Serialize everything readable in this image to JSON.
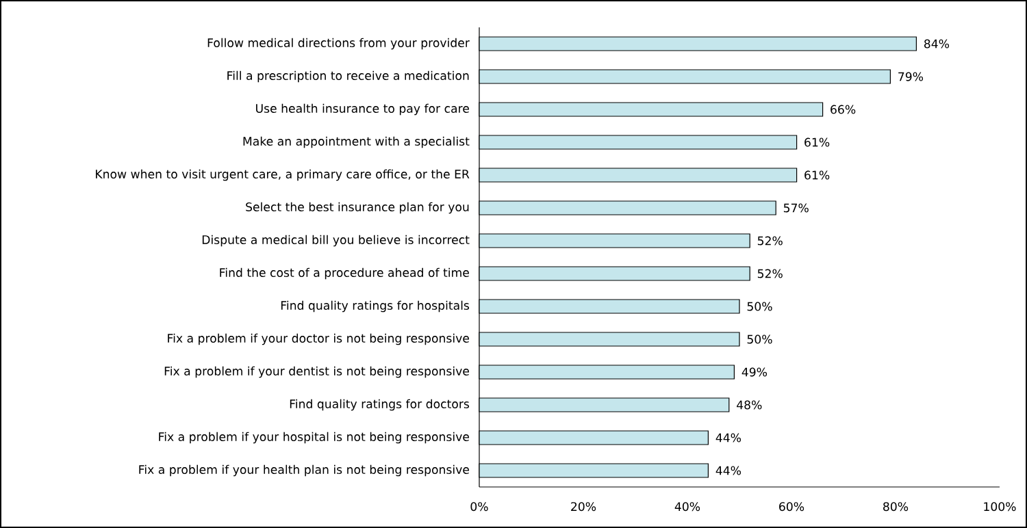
{
  "chart_data": {
    "type": "bar",
    "orientation": "horizontal",
    "categories": [
      "Follow medical directions from your provider",
      "Fill a prescription to receive a medication",
      "Use health insurance to pay for care",
      "Make an appointment with a specialist",
      "Know when to visit urgent care, a primary care office, or the ER",
      "Select the best insurance plan for you",
      "Dispute a medical bill you believe is incorrect",
      "Find the cost of a procedure ahead of time",
      "Find quality ratings for hospitals",
      "Fix a problem if your doctor is not being responsive",
      "Fix a problem if your dentist is not being responsive",
      "Find quality ratings for doctors",
      "Fix a problem if your hospital is not being responsive",
      "Fix a problem if your health plan is not being responsive"
    ],
    "values": [
      84,
      79,
      66,
      61,
      61,
      57,
      52,
      52,
      50,
      50,
      49,
      48,
      44,
      44
    ],
    "value_labels": [
      "84%",
      "79%",
      "66%",
      "61%",
      "61%",
      "57%",
      "52%",
      "52%",
      "50%",
      "50%",
      "49%",
      "48%",
      "44%",
      "44%"
    ],
    "color": "#c5e6ec",
    "xlim": [
      0,
      100
    ],
    "xticks": [
      {
        "value": 0,
        "label": "0%"
      },
      {
        "value": 20,
        "label": "20%"
      },
      {
        "value": 40,
        "label": "40%"
      },
      {
        "value": 60,
        "label": "60%"
      },
      {
        "value": 80,
        "label": "80%"
      },
      {
        "value": 100,
        "label": "100%"
      }
    ]
  }
}
